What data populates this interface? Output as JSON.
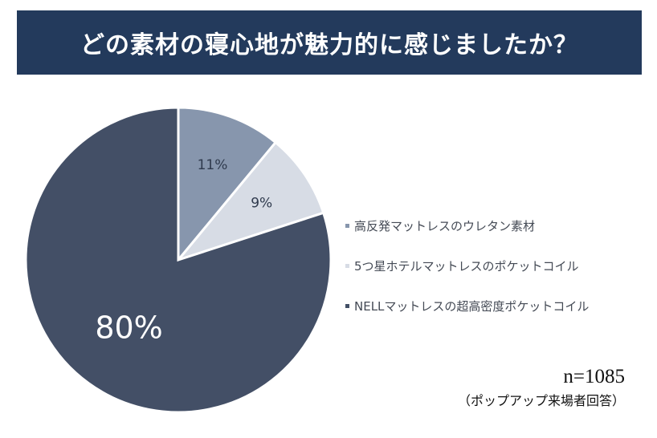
{
  "header": {
    "title": "どの素材の寝心地が魅力的に感じましたか？"
  },
  "chart_data": {
    "type": "pie",
    "categories": [
      "高反発マットレスのウレタン素材",
      "5つ星ホテルマットレスのポケットコイル",
      "NELLマットレスの超高密度ポケットコイル"
    ],
    "values": [
      11,
      9,
      80
    ],
    "labels": [
      "11%",
      "9%",
      "80%"
    ],
    "colors": [
      "#8796ad",
      "#d7dce5",
      "#434f66"
    ],
    "label_colors": [
      "#2f3a4d",
      "#2f3a4d",
      "#ffffff"
    ],
    "legend_position": "right"
  },
  "footnote": {
    "sample": "n=1085",
    "source": "（ポップアップ来場者回答）"
  }
}
